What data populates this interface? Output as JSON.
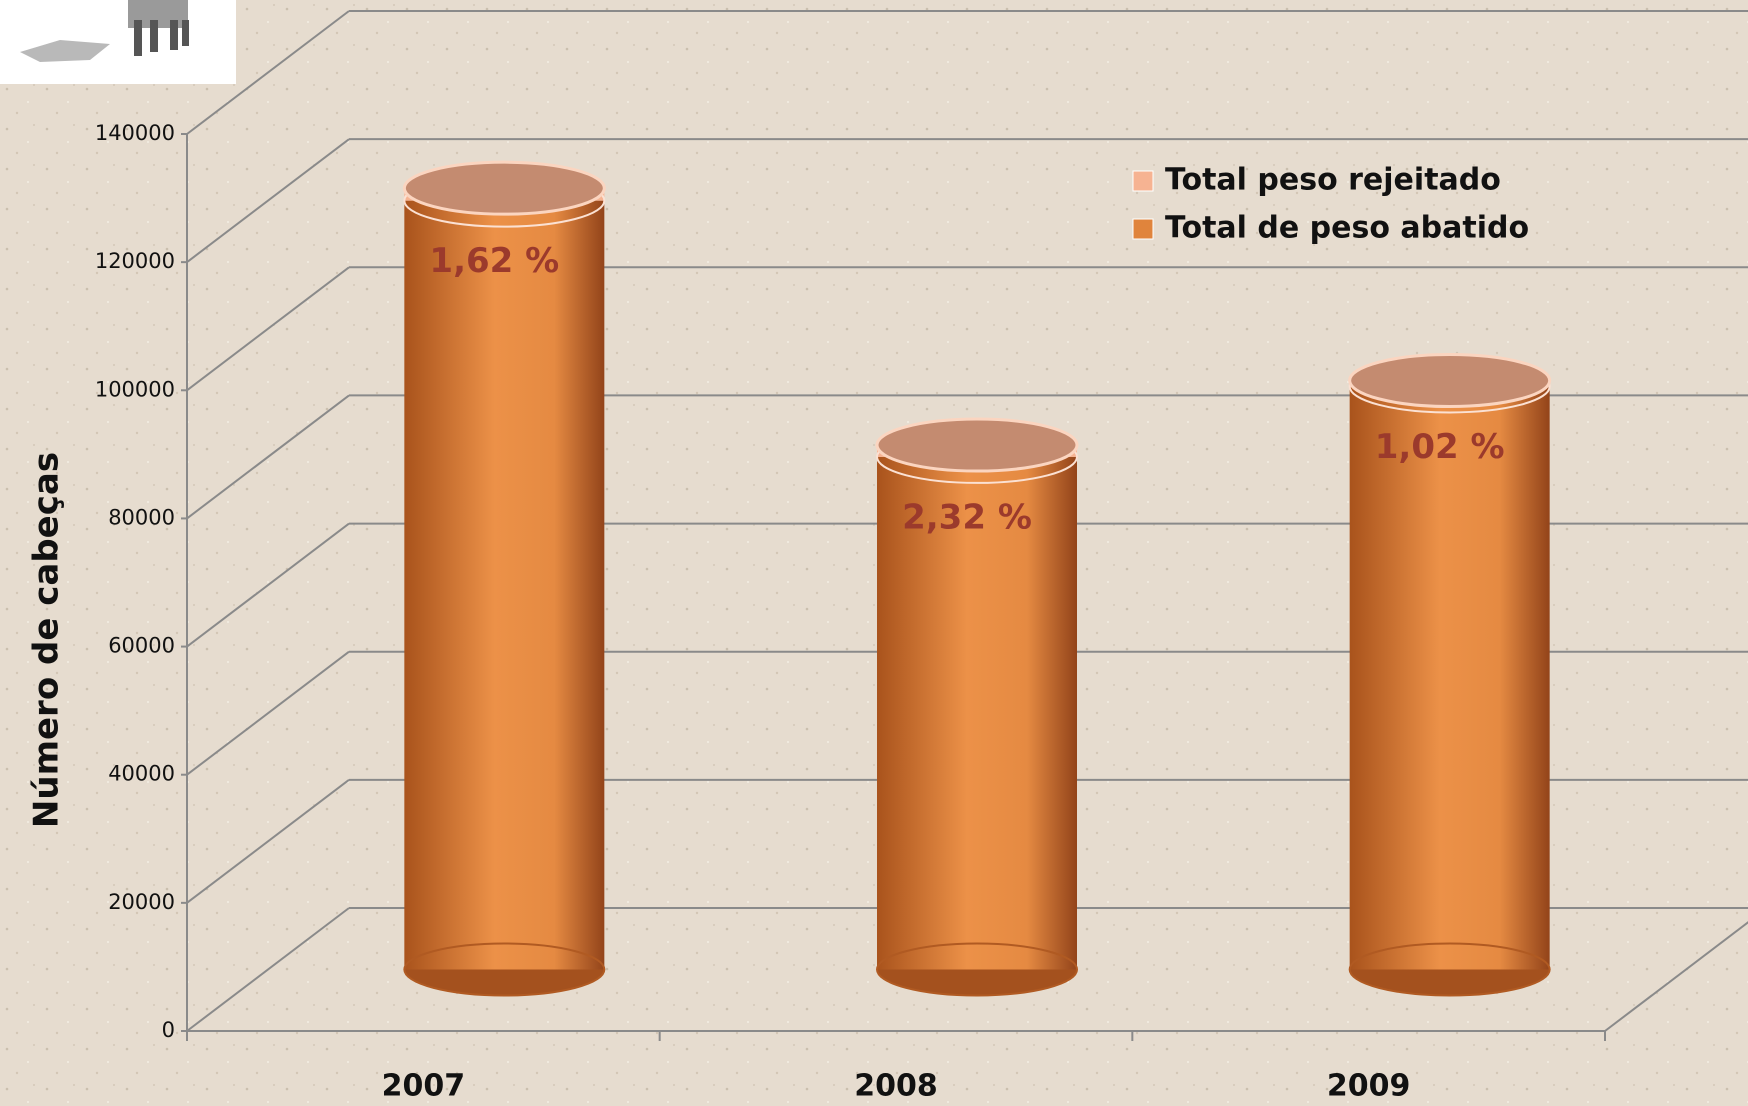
{
  "chart_data": {
    "type": "cylinder_stacked",
    "y_axis_label": "Número de cabeças",
    "categories": [
      "2007",
      "2008",
      "2009"
    ],
    "series": [
      {
        "name": "Total de peso abatido",
        "color": "#e0843c",
        "values": [
          120000,
          80000,
          91000
        ]
      },
      {
        "name": "Total peso rejeitado",
        "color": "#f6b392",
        "values": [
          1944,
          1856,
          928
        ]
      }
    ],
    "percent_labels": [
      "1,62 %",
      "2,32 %",
      "1,02 %"
    ],
    "ylim": [
      0,
      140000
    ],
    "yticks": [
      0,
      20000,
      40000,
      60000,
      80000,
      100000,
      120000,
      140000
    ],
    "grid": true,
    "legend_position": "top-right"
  }
}
